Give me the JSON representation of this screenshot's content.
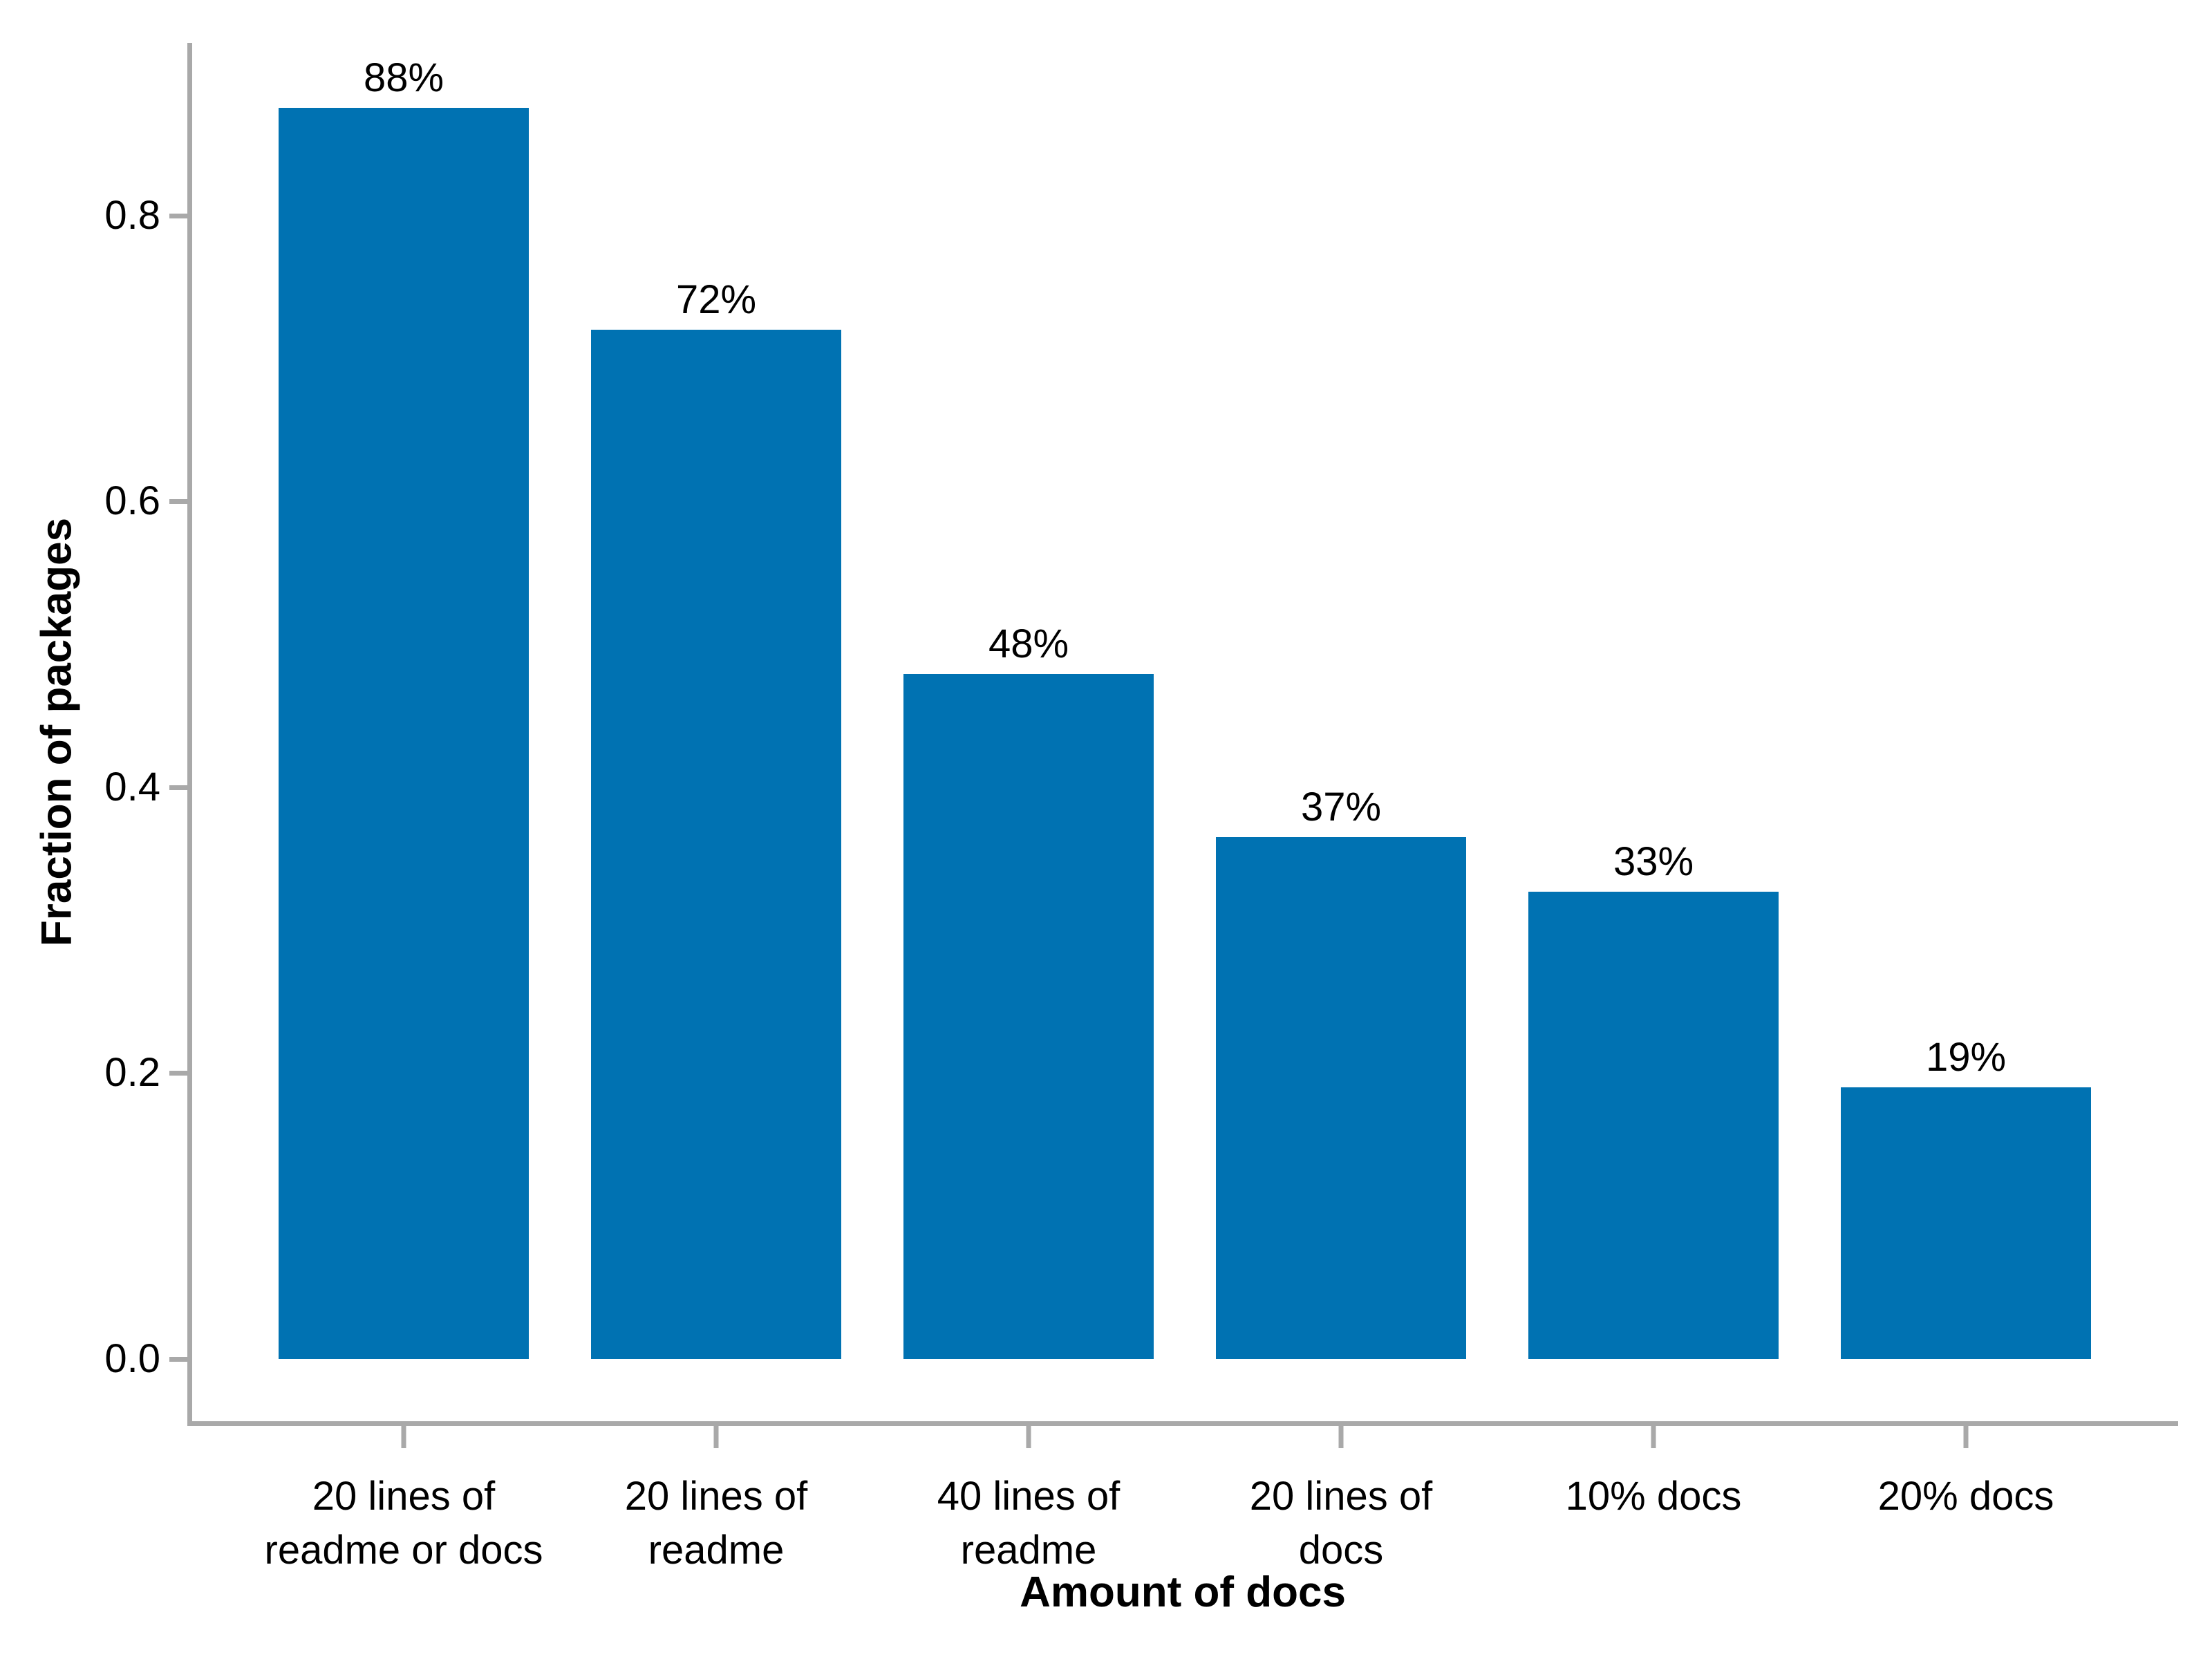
{
  "chart_data": {
    "type": "bar",
    "title": "",
    "xlabel": "Amount of docs",
    "ylabel": "Fraction of packages",
    "categories": [
      "20 lines of readme or docs",
      "20 lines of readme",
      "40 lines of readme",
      "20 lines of docs",
      "10% docs",
      "20% docs"
    ],
    "category_lines": [
      [
        "20 lines of",
        "readme or docs"
      ],
      [
        "20 lines of",
        "readme"
      ],
      [
        "40 lines of",
        "readme"
      ],
      [
        "20 lines of",
        "docs"
      ],
      [
        "10% docs"
      ],
      [
        "20% docs"
      ]
    ],
    "values": [
      0.875,
      0.72,
      0.479,
      0.365,
      0.327,
      0.19
    ],
    "bar_labels": [
      "88%",
      "72%",
      "48%",
      "37%",
      "33%",
      "19%"
    ],
    "y_ticks": [
      {
        "value": 0.0,
        "label": "0.0"
      },
      {
        "value": 0.2,
        "label": "0.2"
      },
      {
        "value": 0.4,
        "label": "0.4"
      },
      {
        "value": 0.6,
        "label": "0.6"
      },
      {
        "value": 0.8,
        "label": "0.8"
      }
    ],
    "ylim": [
      0,
      0.92
    ],
    "grid": false,
    "legend_position": "none",
    "colors": {
      "bar": "#0072B2",
      "axis": "#a9a9a9",
      "text": "#000000",
      "background": "#ffffff"
    }
  }
}
